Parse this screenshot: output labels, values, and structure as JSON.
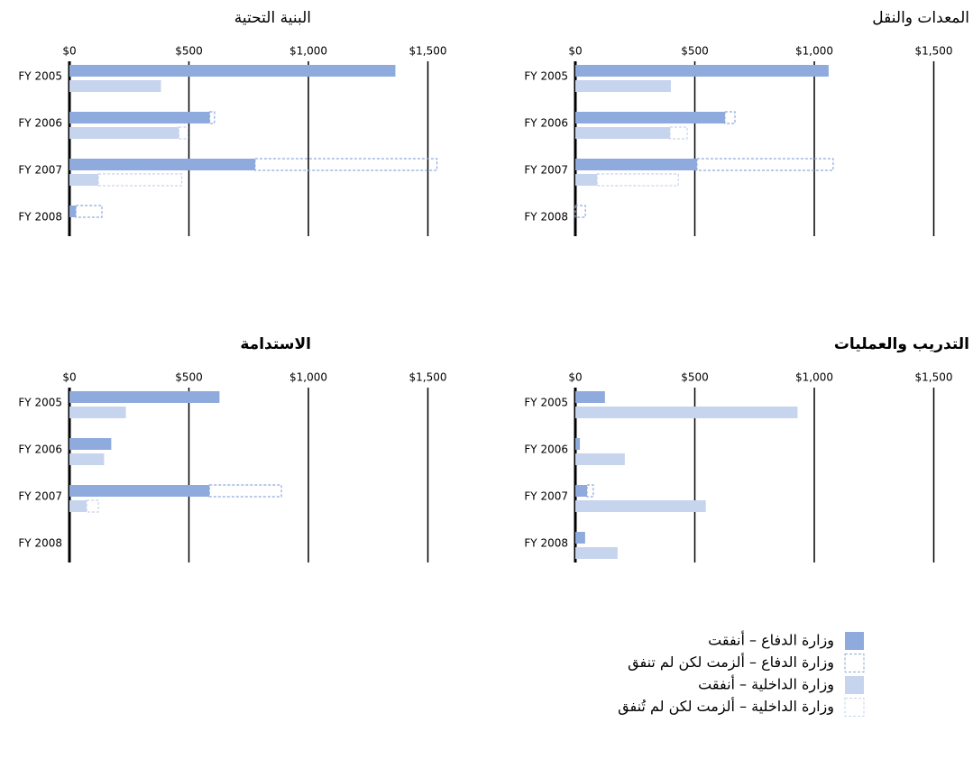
{
  "chart_data": [
    {
      "type": "bar",
      "title": "المعدات والنقل",
      "categories": [
        "FY 2005",
        "FY 2006",
        "FY 2007",
        "FY 2008"
      ],
      "series": [
        {
          "values": [
            1060,
            626,
            509,
            0
          ]
        },
        {
          "values": [
            0,
            42,
            570,
            42
          ]
        },
        {
          "values": [
            400,
            396,
            91,
            0
          ]
        },
        {
          "values": [
            0,
            72,
            340,
            0
          ]
        }
      ],
      "xlim": [
        0,
        1600
      ],
      "xticks": [
        {
          "value": 0,
          "label": "$0"
        },
        {
          "value": 500,
          "label": "$500"
        },
        {
          "value": 1000,
          "label": "$1,000"
        },
        {
          "value": 1500,
          "label": "$1,500"
        }
      ],
      "grid": true
    },
    {
      "type": "bar",
      "title": "البنية التحتية",
      "categories": [
        "FY 2005",
        "FY 2006",
        "FY 2007",
        "FY 2008"
      ],
      "series": [
        {
          "values": [
            1364,
            587,
            777,
            27
          ]
        },
        {
          "values": [
            0,
            20,
            761,
            109
          ]
        },
        {
          "values": [
            383,
            458,
            121,
            0
          ]
        },
        {
          "values": [
            0,
            38,
            349,
            0
          ]
        }
      ],
      "xlim": [
        0,
        1600
      ],
      "xticks": [
        {
          "value": 0,
          "label": "$0"
        },
        {
          "value": 500,
          "label": "$500"
        },
        {
          "value": 1000,
          "label": "$1,000"
        },
        {
          "value": 1500,
          "label": "$1,500"
        }
      ],
      "grid": true
    },
    {
      "type": "bar",
      "title": "التدريب والعمليات",
      "categories": [
        "FY 2005",
        "FY 2006",
        "FY 2007",
        "FY 2008"
      ],
      "series": [
        {
          "values": [
            124,
            19,
            49,
            41
          ]
        },
        {
          "values": [
            0,
            0,
            26,
            0
          ]
        },
        {
          "values": [
            930,
            207,
            546,
            177
          ]
        },
        {
          "values": [
            0,
            0,
            0,
            0
          ]
        }
      ],
      "xlim": [
        0,
        1600
      ],
      "xticks": [
        {
          "value": 0,
          "label": "$0"
        },
        {
          "value": 500,
          "label": "$500"
        },
        {
          "value": 1000,
          "label": "$1,000"
        },
        {
          "value": 1500,
          "label": "$1,500"
        }
      ],
      "grid": true
    },
    {
      "type": "bar",
      "title": "الاستدامة",
      "categories": [
        "FY 2005",
        "FY 2006",
        "FY 2007",
        "FY 2008"
      ],
      "series": [
        {
          "values": [
            628,
            175,
            586,
            0
          ]
        },
        {
          "values": [
            0,
            0,
            301,
            0
          ]
        },
        {
          "values": [
            236,
            145,
            72,
            0
          ]
        },
        {
          "values": [
            0,
            0,
            49,
            0
          ]
        }
      ],
      "xlim": [
        0,
        1600
      ],
      "xticks": [
        {
          "value": 0,
          "label": "$0"
        },
        {
          "value": 500,
          "label": "$500"
        },
        {
          "value": 1000,
          "label": "$1,000"
        },
        {
          "value": 1500,
          "label": "$1,500"
        }
      ],
      "grid": true
    }
  ],
  "legend": [
    {
      "name": "وزارة الدفاع – أنفقت",
      "color": "#8faadc",
      "dashed": false
    },
    {
      "name": "وزارة الدفاع – ألزمت لكن لم تنفق",
      "color": "#8faadc",
      "dashed": true
    },
    {
      "name": "وزارة الداخلية – أنفقت",
      "color": "#c6d4ee",
      "dashed": false
    },
    {
      "name": "وزارة الداخلية – ألزمت لكن لم تُنفق",
      "color": "#c6d4ee",
      "dashed": true
    }
  ]
}
